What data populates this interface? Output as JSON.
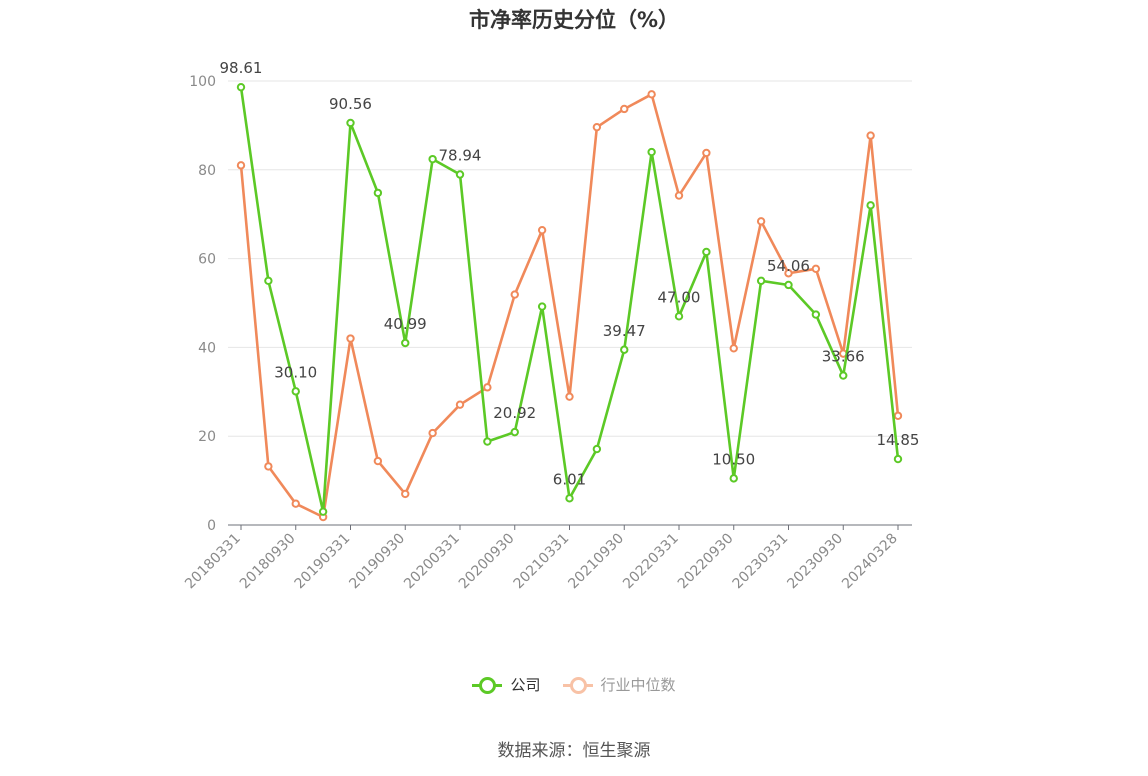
{
  "chart_data": {
    "type": "line",
    "title": "市净率历史分位（%）",
    "x": [
      "20180331",
      "20180630",
      "20180930",
      "20181231",
      "20190331",
      "20190630",
      "20190930",
      "20191231",
      "20200331",
      "20200630",
      "20200930",
      "20201231",
      "20210331",
      "20210630",
      "20210930",
      "20211231",
      "20220331",
      "20220630",
      "20220930",
      "20221231",
      "20230331",
      "20230630",
      "20230930",
      "20231231",
      "20240328"
    ],
    "x_tick_labels": [
      "20180331",
      "20180930",
      "20190331",
      "20190930",
      "20200331",
      "20200930",
      "20210331",
      "20210930",
      "20220331",
      "20220930",
      "20230331",
      "20230930",
      "20240328"
    ],
    "ylim": [
      0,
      100
    ],
    "y_ticks": [
      0,
      20,
      40,
      60,
      80,
      100
    ],
    "grid": true,
    "legend_position": "bottom",
    "series": [
      {
        "name": "公司",
        "color": "#5cc926",
        "values": [
          98.61,
          55.0,
          30.1,
          3.0,
          90.56,
          74.8,
          40.99,
          82.4,
          78.94,
          18.8,
          20.92,
          49.2,
          6.01,
          17.1,
          39.47,
          84.0,
          47.0,
          61.5,
          10.5,
          55.0,
          54.06,
          47.4,
          33.66,
          72.0,
          14.85
        ],
        "labels": {
          "0": "98.61",
          "2": "30.10",
          "4": "90.56",
          "6": "40.99",
          "8": "78.94",
          "10": "20.92",
          "12": "6.01",
          "14": "39.47",
          "16": "47.00",
          "18": "10.50",
          "20": "54.06",
          "22": "33.66",
          "24": "14.85"
        }
      },
      {
        "name": "行业中位数",
        "color": "#f0895a",
        "values": [
          81.0,
          13.2,
          4.8,
          1.8,
          42.0,
          14.4,
          7.0,
          20.7,
          27.1,
          31.0,
          51.9,
          66.4,
          28.9,
          89.6,
          93.7,
          97.0,
          74.2,
          83.8,
          39.8,
          68.4,
          56.7,
          57.7,
          38.6,
          87.7,
          24.6
        ]
      }
    ]
  },
  "legend": {
    "company_label": "公司",
    "industry_label": "行业中位数"
  },
  "source": "数据来源：恒生聚源"
}
